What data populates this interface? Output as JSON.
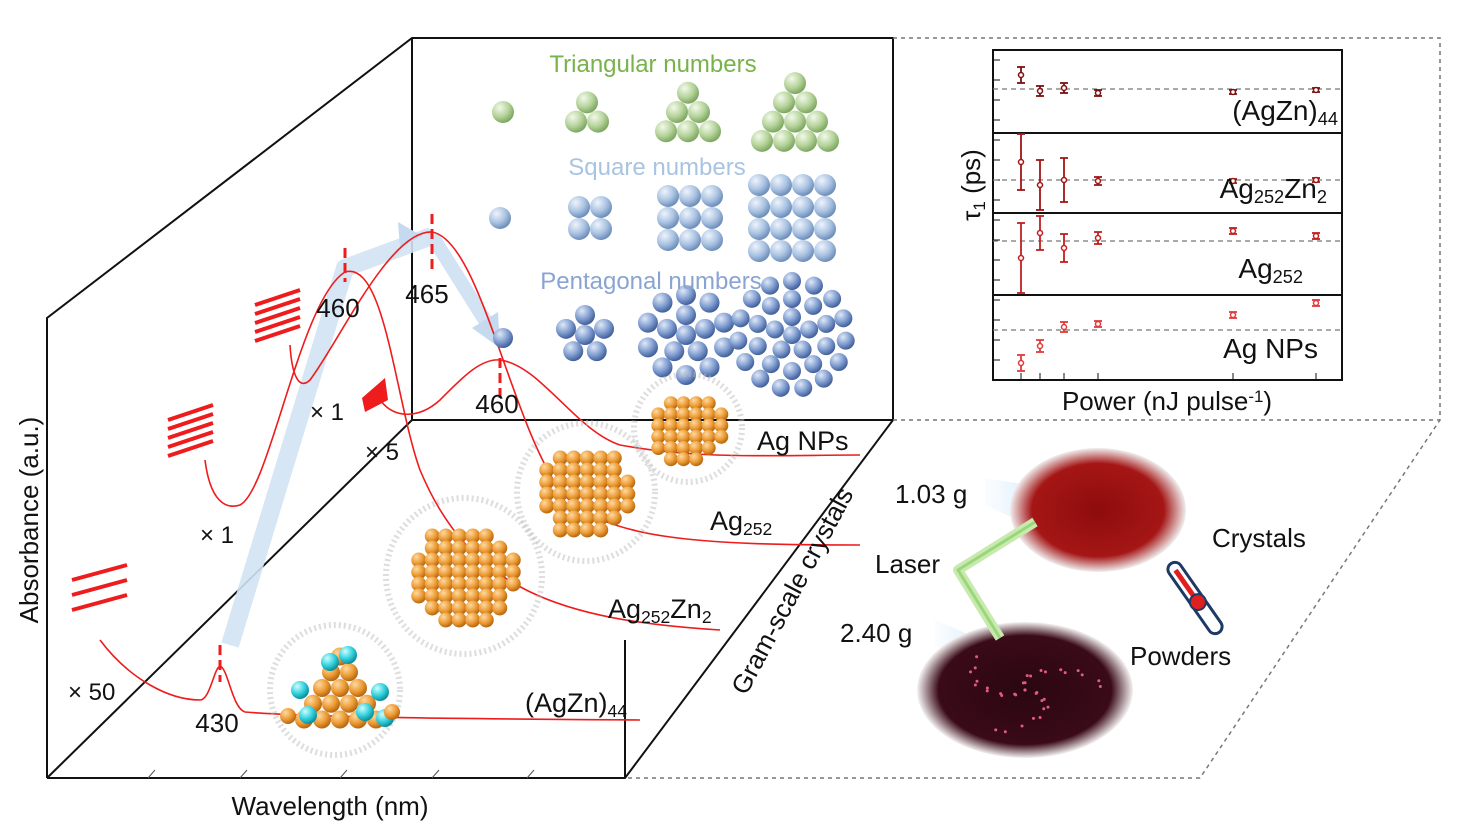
{
  "diagram": {
    "axis_labels": {
      "y": "Absorbance (a.u.)",
      "x": "Wavelength (nm)"
    },
    "number_series": {
      "triangular": "Triangular numbers",
      "square": "Square numbers",
      "pentagonal": "Pentagonal numbers"
    },
    "peaks": [
      "430",
      "460",
      "465",
      "460"
    ],
    "scale_factors": [
      "× 50",
      "× 1",
      "× 1",
      "× 5"
    ],
    "spectra_labels": [
      [
        {
          "text": "(AgZn)"
        },
        {
          "sub": "44"
        }
      ],
      [
        {
          "text": "Ag"
        },
        {
          "sub": "252"
        },
        {
          "text": "Zn"
        },
        {
          "sub": "2"
        }
      ],
      [
        {
          "text": "Ag"
        },
        {
          "sub": "252"
        }
      ],
      [
        {
          "text": "Ag NPs"
        }
      ]
    ],
    "side_label": "Gram-scale crystals",
    "inset": {
      "y_label": [
        {
          "text": "τ"
        },
        {
          "sub": "1"
        },
        {
          "text": " (ps)"
        }
      ],
      "x_label": [
        {
          "text": "Power (nJ pulse"
        },
        {
          "sup": "-1"
        },
        {
          "text": ")"
        }
      ],
      "panel_labels": [
        [
          {
            "text": "(AgZn)"
          },
          {
            "sub": "44"
          }
        ],
        [
          {
            "text": "Ag"
          },
          {
            "sub": "252"
          },
          {
            "text": "Zn"
          },
          {
            "sub": "2"
          }
        ],
        [
          {
            "text": "Ag"
          },
          {
            "sub": "252"
          }
        ],
        [
          {
            "text": "Ag NPs"
          }
        ]
      ]
    },
    "photos": {
      "mass_crystals": "1.03 g",
      "mass_powders": "2.40 g",
      "laser": "Laser",
      "crystals": "Crystals",
      "powders": "Powders"
    }
  }
}
